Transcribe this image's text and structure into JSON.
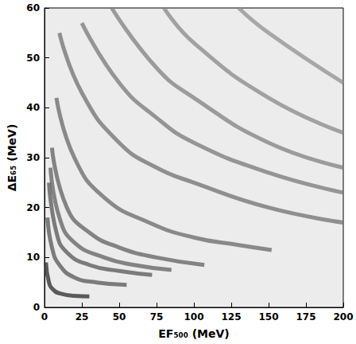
{
  "chart_data": {
    "type": "line",
    "x_label": "EF₅₀₀ (MeV)",
    "y_label": "ΔE₆₅ (MeV)",
    "xlim": [
      0,
      200
    ],
    "xticks": [
      0,
      25,
      50,
      75,
      100,
      125,
      150,
      175,
      200
    ],
    "ylim": [
      0,
      60
    ],
    "yticks": [
      0,
      10,
      20,
      30,
      40,
      50,
      60
    ],
    "grid": false,
    "line_style": "solid",
    "series": [
      {
        "color": "#2a2a2a",
        "x": [
          1,
          3,
          6,
          10,
          20,
          30
        ],
        "values": [
          9,
          5,
          3.5,
          2.8,
          2.3,
          2.2
        ]
      },
      {
        "color": "#555555",
        "x": [
          2,
          5,
          10,
          20,
          35,
          55
        ],
        "values": [
          18,
          12,
          8.5,
          6,
          5,
          4.5
        ]
      },
      {
        "color": "#555555",
        "x": [
          3,
          8,
          15,
          30,
          50,
          72
        ],
        "values": [
          25,
          15,
          11,
          8.5,
          7.3,
          6.5
        ]
      },
      {
        "color": "#606060",
        "x": [
          4,
          10,
          20,
          40,
          60,
          85
        ],
        "values": [
          28,
          18,
          13,
          10,
          8.5,
          7.5
        ]
      },
      {
        "color": "#606060",
        "x": [
          5,
          15,
          30,
          50,
          75,
          107
        ],
        "values": [
          32,
          20,
          15,
          12,
          10,
          8.5
        ]
      },
      {
        "color": "#686868",
        "x": [
          8,
          20,
          40,
          70,
          100,
          130,
          152
        ],
        "values": [
          42,
          30,
          22,
          17,
          14,
          12.5,
          11.5
        ]
      },
      {
        "color": "#707070",
        "x": [
          10,
          25,
          50,
          75,
          100,
          150,
          200
        ],
        "values": [
          55,
          43,
          33,
          28,
          25,
          20,
          17
        ]
      },
      {
        "color": "#787878",
        "x": [
          25,
          50,
          75,
          100,
          150,
          200
        ],
        "values": [
          57,
          45,
          38,
          33,
          27,
          23
        ]
      },
      {
        "color": "#808080",
        "x": [
          45,
          75,
          100,
          150,
          200
        ],
        "values": [
          60,
          48,
          42,
          33,
          28
        ]
      },
      {
        "color": "#888888",
        "x": [
          80,
          100,
          150,
          200
        ],
        "values": [
          60,
          53,
          42,
          35
        ]
      },
      {
        "color": "#909090",
        "x": [
          130,
          150,
          200
        ],
        "values": [
          60,
          55,
          45
        ]
      }
    ]
  }
}
